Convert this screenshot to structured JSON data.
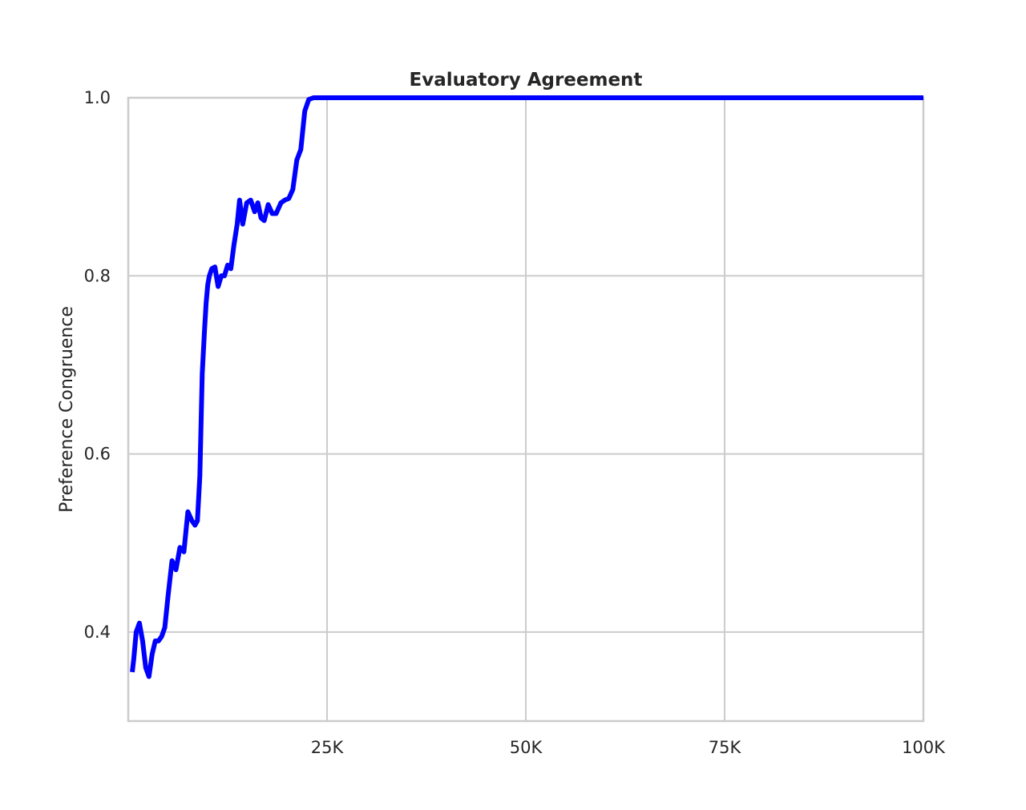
{
  "chart_data": {
    "type": "line",
    "title": "Evaluatory Agreement",
    "xlabel": "",
    "ylabel": "Preference Congruence",
    "xlim": [
      0,
      100000
    ],
    "ylim": [
      0.3,
      1.0
    ],
    "x_ticks": [
      {
        "value": 25000,
        "label": "25K"
      },
      {
        "value": 50000,
        "label": "50K"
      },
      {
        "value": 75000,
        "label": "75K"
      },
      {
        "value": 100000,
        "label": "100K"
      }
    ],
    "y_ticks": [
      {
        "value": 0.4,
        "label": "0.4"
      },
      {
        "value": 0.6,
        "label": "0.6"
      },
      {
        "value": 0.8,
        "label": "0.8"
      },
      {
        "value": 1.0,
        "label": "1.0"
      }
    ],
    "grid": true,
    "line_color": "#0000ff",
    "series": [
      {
        "x": [
          500,
          700,
          1000,
          1400,
          1800,
          2200,
          2600,
          3000,
          3400,
          3800,
          4200,
          4600,
          5000,
          5500,
          6000,
          6500,
          7000,
          7500,
          8000,
          8400,
          8700,
          9000,
          9300,
          9600,
          9800,
          10000,
          10200,
          10500,
          10900,
          11300,
          11700,
          12100,
          12500,
          12900,
          13300,
          13700,
          14000,
          14400,
          14900,
          15400,
          15900,
          16300,
          16700,
          17100,
          17600,
          18100,
          18600,
          19200,
          19700,
          20200,
          20700,
          21200,
          21700,
          22200,
          22700,
          23300,
          23800,
          24300,
          24700,
          25000,
          25300,
          25700,
          30000,
          40000,
          50000,
          60000,
          70000,
          80000,
          90000,
          100000
        ],
        "values": [
          0.355,
          0.37,
          0.4,
          0.41,
          0.39,
          0.36,
          0.35,
          0.375,
          0.39,
          0.39,
          0.395,
          0.405,
          0.44,
          0.48,
          0.47,
          0.495,
          0.49,
          0.535,
          0.525,
          0.52,
          0.525,
          0.575,
          0.69,
          0.74,
          0.77,
          0.79,
          0.8,
          0.808,
          0.81,
          0.788,
          0.8,
          0.8,
          0.812,
          0.808,
          0.835,
          0.858,
          0.885,
          0.858,
          0.882,
          0.885,
          0.872,
          0.882,
          0.865,
          0.862,
          0.88,
          0.87,
          0.87,
          0.882,
          0.885,
          0.887,
          0.897,
          0.93,
          0.942,
          0.985,
          0.998,
          1.0,
          1.0,
          1.0,
          1.0,
          1.0,
          1.0,
          1.0,
          1.0,
          1.0,
          1.0,
          1.0,
          1.0,
          1.0,
          1.0,
          1.0
        ]
      }
    ]
  }
}
